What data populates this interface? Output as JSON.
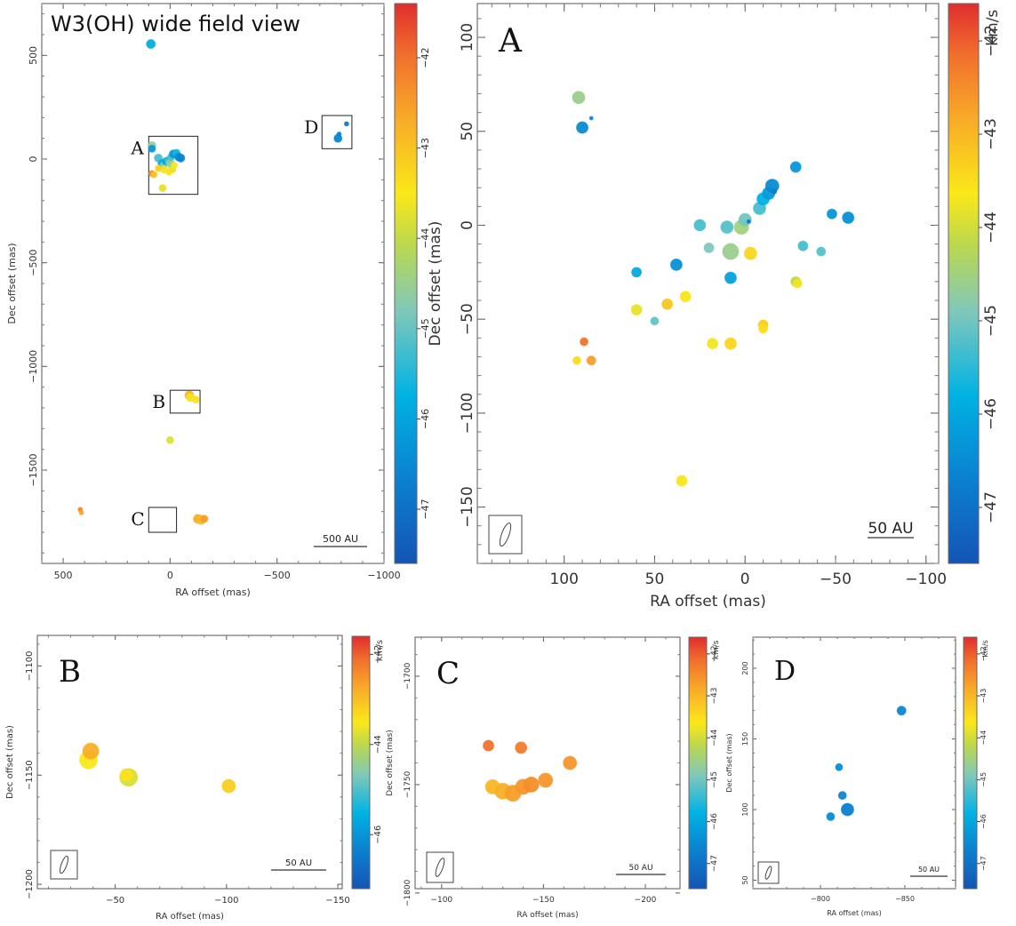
{
  "chart_data": [
    {
      "id": "wide",
      "type": "scatter",
      "title": "W3(OH)  wide field view",
      "xlabel": "RA offset (mas)",
      "ylabel": "Dec offset (mas)",
      "xlim": [
        600,
        -1000
      ],
      "ylim": [
        -1950,
        750
      ],
      "x_ticks": [
        500,
        0,
        -500,
        -1000
      ],
      "x_ticklabels": [
        "500",
        "0",
        "−500",
        "−1000"
      ],
      "y_ticks": [
        500,
        0,
        -500,
        -1000,
        -1500
      ],
      "y_ticklabels": [
        "500",
        "0",
        "−500",
        "−1000",
        "−1500"
      ],
      "scalebar_label": "500 AU",
      "regions": [
        {
          "label": "A",
          "x0": 100,
          "x1": -130,
          "y0": -170,
          "y1": 110
        },
        {
          "label": "B",
          "x0": 0,
          "x1": -140,
          "y0": -1225,
          "y1": -1115
        },
        {
          "label": "C",
          "x0": 100,
          "x1": -30,
          "y0": -1800,
          "y1": -1680
        },
        {
          "label": "D",
          "x0": -710,
          "x1": -850,
          "y0": 50,
          "y1": 210
        }
      ],
      "colorbar": {
        "range": [
          -47.6,
          -41.4
        ],
        "ticks": [
          -42,
          -43,
          -44,
          -45,
          -46,
          -47
        ],
        "ticklabels": [
          "−42",
          "−43",
          "−44",
          "−45",
          "−46",
          "−47"
        ],
        "unit": ""
      },
      "points": [
        {
          "x": 90,
          "y": 555,
          "v": -45.8,
          "s": 5
        },
        {
          "x": 85,
          "y": 65,
          "v": -44.6,
          "s": 4.5
        },
        {
          "x": 85,
          "y": 50,
          "v": -46.2,
          "s": 4
        },
        {
          "x": 55,
          "y": 5,
          "v": -45.2,
          "s": 4.5
        },
        {
          "x": 40,
          "y": -20,
          "v": -45.8,
          "s": 4
        },
        {
          "x": 30,
          "y": -30,
          "v": -44.8,
          "s": 4
        },
        {
          "x": 20,
          "y": -10,
          "v": -46.0,
          "s": 4
        },
        {
          "x": 10,
          "y": -5,
          "v": -45.4,
          "s": 4
        },
        {
          "x": 0,
          "y": -20,
          "v": -44.6,
          "s": 4.5
        },
        {
          "x": -5,
          "y": 10,
          "v": -45.2,
          "s": 4
        },
        {
          "x": -15,
          "y": 25,
          "v": -46.2,
          "s": 4.5
        },
        {
          "x": -30,
          "y": 30,
          "v": -45.6,
          "s": 4
        },
        {
          "x": -40,
          "y": 10,
          "v": -46.4,
          "s": 4.5
        },
        {
          "x": -50,
          "y": 5,
          "v": -46.6,
          "s": 4.5
        },
        {
          "x": -10,
          "y": -50,
          "v": -43.7,
          "s": 4
        },
        {
          "x": 5,
          "y": -60,
          "v": -43.4,
          "s": 4
        },
        {
          "x": 30,
          "y": -50,
          "v": -43.6,
          "s": 4
        },
        {
          "x": 55,
          "y": -45,
          "v": -43.2,
          "s": 3.5
        },
        {
          "x": 85,
          "y": -70,
          "v": -42.3,
          "s": 3.5
        },
        {
          "x": 75,
          "y": -75,
          "v": -43.0,
          "s": 3.5
        },
        {
          "x": -20,
          "y": -30,
          "v": -43.5,
          "s": 3.5
        },
        {
          "x": 35,
          "y": -140,
          "v": -43.7,
          "s": 4
        },
        {
          "x": -90,
          "y": -1140,
          "v": -42.8,
          "s": 5
        },
        {
          "x": -95,
          "y": -1150,
          "v": -43.6,
          "s": 4.5
        },
        {
          "x": -120,
          "y": -1160,
          "v": -43.4,
          "s": 4
        },
        {
          "x": 0,
          "y": -1355,
          "v": -43.8,
          "s": 4
        },
        {
          "x": -130,
          "y": -1735,
          "v": -42.7,
          "s": 5
        },
        {
          "x": -145,
          "y": -1740,
          "v": -42.9,
          "s": 5
        },
        {
          "x": -160,
          "y": -1735,
          "v": -42.5,
          "s": 4
        },
        {
          "x": 420,
          "y": -1690,
          "v": -42.2,
          "s": 2.5
        },
        {
          "x": 415,
          "y": -1705,
          "v": -42.6,
          "s": 2.5
        },
        {
          "x": -785,
          "y": 100,
          "v": -46.5,
          "s": 4.5
        },
        {
          "x": -790,
          "y": 120,
          "v": -46.6,
          "s": 2.5
        },
        {
          "x": -825,
          "y": 170,
          "v": -46.8,
          "s": 2.5
        },
        {
          "x": -780,
          "y": 95,
          "v": -46.3,
          "s": 2.5
        }
      ]
    },
    {
      "id": "A",
      "type": "scatter",
      "panel_label": "A",
      "xlabel": "RA offset (mas)",
      "ylabel": "Dec offset (mas)",
      "xlim": [
        148,
        -107
      ],
      "ylim": [
        -180,
        118
      ],
      "x_ticks": [
        100,
        50,
        0,
        -50,
        -100
      ],
      "x_ticklabels": [
        "100",
        "50",
        "0",
        "−50",
        "−100"
      ],
      "y_ticks": [
        100,
        50,
        0,
        -50,
        -100,
        -150
      ],
      "y_ticklabels": [
        "100",
        "50",
        "0",
        "−50",
        "−100",
        "−150"
      ],
      "scalebar_label": "50 AU",
      "colorbar": {
        "range": [
          -47.6,
          -41.6
        ],
        "ticks": [
          -42,
          -43,
          -44,
          -45,
          -46,
          -47
        ],
        "ticklabels": [
          "−42",
          "−43",
          "−44",
          "−45",
          "−46",
          "−47"
        ],
        "unit": "km/s"
      },
      "points": [
        {
          "x": 92,
          "y": 68,
          "v": -44.6,
          "s": 7
        },
        {
          "x": 90,
          "y": 52,
          "v": -46.5,
          "s": 6.5
        },
        {
          "x": 85,
          "y": 57,
          "v": -46.6,
          "s": 2
        },
        {
          "x": 60,
          "y": -25,
          "v": -45.9,
          "s": 5.5
        },
        {
          "x": 38,
          "y": -21,
          "v": -46.4,
          "s": 6.5
        },
        {
          "x": 25,
          "y": 0,
          "v": -45.3,
          "s": 6.5
        },
        {
          "x": 20,
          "y": -12,
          "v": -44.9,
          "s": 5.5
        },
        {
          "x": 10,
          "y": -1,
          "v": -45.2,
          "s": 7
        },
        {
          "x": 8,
          "y": -14,
          "v": -44.6,
          "s": 9
        },
        {
          "x": 8,
          "y": -28,
          "v": -46.1,
          "s": 6.5
        },
        {
          "x": 2,
          "y": -1,
          "v": -44.5,
          "s": 8
        },
        {
          "x": 0,
          "y": 3,
          "v": -45.0,
          "s": 7
        },
        {
          "x": -2,
          "y": 2,
          "v": -46.8,
          "s": 2
        },
        {
          "x": -8,
          "y": 9,
          "v": -45.3,
          "s": 7
        },
        {
          "x": -10,
          "y": 14,
          "v": -45.8,
          "s": 7
        },
        {
          "x": -13,
          "y": 17,
          "v": -46.2,
          "s": 7
        },
        {
          "x": -15,
          "y": 21,
          "v": -46.5,
          "s": 7.5
        },
        {
          "x": -16,
          "y": 18,
          "v": -46.7,
          "s": 3
        },
        {
          "x": -28,
          "y": 31,
          "v": -46.3,
          "s": 6
        },
        {
          "x": -32,
          "y": -11,
          "v": -45.3,
          "s": 5.5
        },
        {
          "x": -42,
          "y": -14,
          "v": -45.2,
          "s": 5
        },
        {
          "x": -48,
          "y": 6,
          "v": -46.3,
          "s": 5.5
        },
        {
          "x": -57,
          "y": 4,
          "v": -46.4,
          "s": 6.5
        },
        {
          "x": -3,
          "y": -15,
          "v": -43.4,
          "s": 7
        },
        {
          "x": 60,
          "y": -45,
          "v": -43.8,
          "s": 6
        },
        {
          "x": 50,
          "y": -51,
          "v": -45.1,
          "s": 4.5
        },
        {
          "x": 43,
          "y": -42,
          "v": -43.2,
          "s": 6
        },
        {
          "x": 33,
          "y": -38,
          "v": -43.6,
          "s": 6
        },
        {
          "x": 18,
          "y": -63,
          "v": -43.7,
          "s": 6
        },
        {
          "x": 8,
          "y": -63,
          "v": -43.4,
          "s": 6.5
        },
        {
          "x": -10,
          "y": -53,
          "v": -43.3,
          "s": 5.5
        },
        {
          "x": -10,
          "y": -55,
          "v": -43.5,
          "s": 5
        },
        {
          "x": -28,
          "y": -30,
          "v": -44.2,
          "s": 5.5
        },
        {
          "x": -29,
          "y": -31,
          "v": -43.7,
          "s": 5
        },
        {
          "x": 93,
          "y": -72,
          "v": -43.5,
          "s": 4.5
        },
        {
          "x": 89,
          "y": -62,
          "v": -42.2,
          "s": 4.5
        },
        {
          "x": 85,
          "y": -72,
          "v": -42.7,
          "s": 5
        },
        {
          "x": 35,
          "y": -136,
          "v": -43.6,
          "s": 6
        }
      ]
    },
    {
      "id": "B",
      "type": "scatter",
      "panel_label": "B",
      "xlabel": "RA offset (mas)",
      "ylabel": "Dec offset (mas)",
      "xlim": [
        -15,
        -152
      ],
      "ylim": [
        -1202,
        -1086
      ],
      "x_ticks": [
        -50,
        -100,
        -150
      ],
      "x_ticklabels": [
        "−50",
        "−100",
        "−150"
      ],
      "y_ticks": [
        -1100,
        -1150,
        -1200
      ],
      "y_ticklabels": [
        "−1100",
        "−1150",
        "−1200"
      ],
      "scalebar_label": "50 AU",
      "colorbar": {
        "range": [
          -47.2,
          -41.6
        ],
        "ticks": [
          -42,
          -44,
          -46
        ],
        "ticklabels": [
          "−42",
          "−44",
          "−46"
        ],
        "unit": "km/s"
      },
      "points": [
        {
          "x": -38,
          "y": -1143,
          "v": -43.5,
          "s": 10
        },
        {
          "x": -39,
          "y": -1139,
          "v": -42.8,
          "s": 9
        },
        {
          "x": -56,
          "y": -1151,
          "v": -43.8,
          "s": 10
        },
        {
          "x": -55,
          "y": -1150,
          "v": -43.4,
          "s": 7
        },
        {
          "x": -101,
          "y": -1155,
          "v": -43.2,
          "s": 7.5
        }
      ]
    },
    {
      "id": "C",
      "type": "scatter",
      "panel_label": "C",
      "xlabel": "RA offset (mas)",
      "ylabel": "Dec offset (mas)",
      "xlim": [
        -87,
        -217
      ],
      "ylim": [
        -1798,
        -1682
      ],
      "x_ticks": [
        -100,
        -150,
        -200
      ],
      "x_ticklabels": [
        "−100",
        "−150",
        "−200"
      ],
      "y_ticks": [
        -1700,
        -1750,
        -1800
      ],
      "y_ticklabels": [
        "−1700",
        "−1750",
        "−1800"
      ],
      "scalebar_label": "50 AU",
      "colorbar": {
        "range": [
          -47.6,
          -41.6
        ],
        "ticks": [
          -42,
          -43,
          -44,
          -45,
          -46,
          -47
        ],
        "ticklabels": [
          "−42",
          "−43",
          "−44",
          "−45",
          "−46",
          "−47"
        ],
        "unit": "km/s"
      },
      "points": [
        {
          "x": -123,
          "y": -1732,
          "v": -42.2,
          "s": 6
        },
        {
          "x": -139,
          "y": -1733,
          "v": -42.3,
          "s": 6.5
        },
        {
          "x": -125,
          "y": -1751,
          "v": -43.0,
          "s": 8
        },
        {
          "x": -130,
          "y": -1753,
          "v": -42.9,
          "s": 9
        },
        {
          "x": -135,
          "y": -1754,
          "v": -42.7,
          "s": 9
        },
        {
          "x": -140,
          "y": -1751,
          "v": -42.6,
          "s": 8.5
        },
        {
          "x": -144,
          "y": -1750,
          "v": -42.5,
          "s": 8.5
        },
        {
          "x": -151,
          "y": -1748,
          "v": -42.6,
          "s": 8
        },
        {
          "x": -163,
          "y": -1740,
          "v": -42.6,
          "s": 7.5
        }
      ]
    },
    {
      "id": "D",
      "type": "scatter",
      "panel_label": "D",
      "xlabel": "RA offset (mas)",
      "ylabel": "Dec offset (mas)",
      "xlim": [
        -760,
        -880
      ],
      "ylim": [
        44,
        222
      ],
      "x_ticks": [
        -800,
        -850
      ],
      "x_ticklabels": [
        "−800",
        "−850"
      ],
      "y_ticks": [
        200,
        150,
        100,
        50
      ],
      "y_ticklabels": [
        "200",
        "150",
        "100",
        "50"
      ],
      "scalebar_label": "50 AU",
      "colorbar": {
        "range": [
          -47.6,
          -41.6
        ],
        "ticks": [
          -42,
          -43,
          -44,
          -45,
          -46,
          -47
        ],
        "ticklabels": [
          "−42",
          "−43",
          "−44",
          "−45",
          "−46",
          "−47"
        ],
        "unit": "km/s"
      },
      "points": [
        {
          "x": -848,
          "y": 170,
          "v": -46.6,
          "s": 5
        },
        {
          "x": -811,
          "y": 130,
          "v": -46.5,
          "s": 4
        },
        {
          "x": -813,
          "y": 110,
          "v": -46.6,
          "s": 4.5
        },
        {
          "x": -816,
          "y": 100,
          "v": -46.7,
          "s": 7
        },
        {
          "x": -806,
          "y": 95,
          "v": -46.5,
          "s": 4.5
        }
      ]
    }
  ]
}
